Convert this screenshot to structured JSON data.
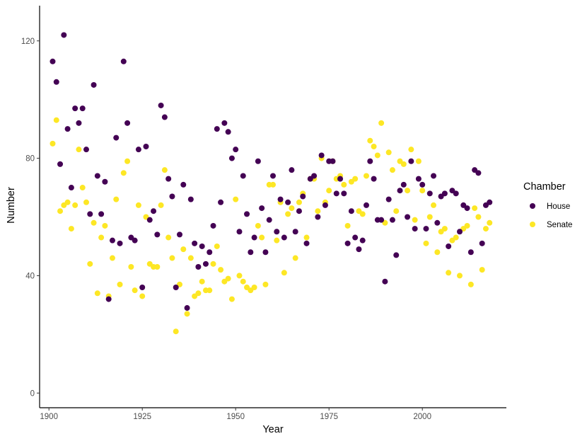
{
  "chart_data": {
    "type": "scatter",
    "title": "",
    "xlabel": "Year",
    "ylabel": "Number",
    "xlim": [
      1897.5,
      2022.5
    ],
    "ylim": [
      -5,
      132
    ],
    "xticks": [
      1900,
      1925,
      1950,
      1975,
      2000
    ],
    "yticks": [
      0,
      40,
      80,
      120
    ],
    "grid": false,
    "legend": {
      "title": "Chamber",
      "placement": "right"
    },
    "series": [
      {
        "name": "House",
        "color": "#440154",
        "x": [
          1901,
          1902,
          1903,
          1904,
          1905,
          1906,
          1907,
          1908,
          1909,
          1910,
          1911,
          1912,
          1913,
          1914,
          1915,
          1916,
          1917,
          1918,
          1919,
          1920,
          1921,
          1922,
          1923,
          1924,
          1925,
          1926,
          1927,
          1928,
          1929,
          1930,
          1931,
          1932,
          1933,
          1934,
          1935,
          1936,
          1937,
          1938,
          1939,
          1940,
          1941,
          1942,
          1943,
          1944,
          1945,
          1946,
          1947,
          1948,
          1949,
          1950,
          1951,
          1952,
          1953,
          1954,
          1955,
          1956,
          1957,
          1958,
          1959,
          1960,
          1961,
          1962,
          1963,
          1964,
          1965,
          1966,
          1967,
          1968,
          1969,
          1970,
          1971,
          1972,
          1973,
          1974,
          1975,
          1976,
          1977,
          1978,
          1979,
          1980,
          1981,
          1982,
          1983,
          1984,
          1985,
          1986,
          1987,
          1988,
          1989,
          1990,
          1991,
          1992,
          1993,
          1994,
          1995,
          1996,
          1997,
          1998,
          1999,
          2000,
          2001,
          2002,
          2003,
          2004,
          2005,
          2006,
          2007,
          2008,
          2009,
          2010,
          2011,
          2012,
          2013,
          2014,
          2015,
          2016,
          2017,
          2018
        ],
        "y": [
          113,
          106,
          78,
          122,
          90,
          70,
          97,
          92,
          97,
          83,
          61,
          105,
          74,
          61,
          72,
          32,
          52,
          87,
          51,
          113,
          92,
          53,
          52,
          83,
          36,
          84,
          59,
          62,
          54,
          98,
          94,
          73,
          67,
          36,
          54,
          71,
          29,
          66,
          51,
          43,
          50,
          44,
          48,
          57,
          90,
          65,
          92,
          89,
          80,
          83,
          55,
          74,
          61,
          48,
          53,
          79,
          63,
          48,
          59,
          74,
          55,
          66,
          53,
          65,
          76,
          55,
          62,
          67,
          51,
          73,
          74,
          60,
          81,
          64,
          79,
          79,
          68,
          73,
          68,
          51,
          62,
          53,
          49,
          52,
          64,
          79,
          73,
          59,
          59,
          38,
          66,
          59,
          47,
          69,
          71,
          60,
          79,
          56,
          73,
          71,
          56,
          68,
          74,
          58,
          67,
          68,
          50,
          69,
          68,
          55,
          64,
          63,
          48,
          76,
          75,
          51,
          64,
          65
        ]
      },
      {
        "name": "Senate",
        "color": "#FDE725",
        "x": [
          1901,
          1902,
          1903,
          1904,
          1905,
          1906,
          1907,
          1908,
          1909,
          1910,
          1911,
          1912,
          1913,
          1914,
          1915,
          1916,
          1917,
          1918,
          1919,
          1920,
          1921,
          1922,
          1923,
          1924,
          1925,
          1926,
          1927,
          1928,
          1929,
          1930,
          1931,
          1932,
          1933,
          1934,
          1935,
          1936,
          1937,
          1938,
          1939,
          1940,
          1941,
          1942,
          1943,
          1944,
          1945,
          1946,
          1947,
          1948,
          1949,
          1950,
          1951,
          1952,
          1953,
          1954,
          1955,
          1956,
          1957,
          1958,
          1959,
          1960,
          1961,
          1962,
          1963,
          1964,
          1965,
          1966,
          1967,
          1968,
          1969,
          1970,
          1971,
          1972,
          1973,
          1974,
          1975,
          1976,
          1977,
          1978,
          1979,
          1980,
          1981,
          1982,
          1983,
          1984,
          1985,
          1986,
          1987,
          1988,
          1989,
          1990,
          1991,
          1992,
          1993,
          1994,
          1995,
          1996,
          1997,
          1998,
          1999,
          2000,
          2001,
          2002,
          2003,
          2004,
          2005,
          2006,
          2007,
          2008,
          2009,
          2010,
          2011,
          2012,
          2013,
          2014,
          2015,
          2016,
          2017,
          2018
        ],
        "y": [
          85,
          93,
          62,
          64,
          65,
          56,
          64,
          83,
          70,
          65,
          44,
          58,
          34,
          53,
          57,
          33,
          46,
          66,
          37,
          75,
          79,
          43,
          35,
          64,
          33,
          60,
          44,
          43,
          43,
          64,
          76,
          53,
          46,
          21,
          37,
          49,
          27,
          46,
          33,
          34,
          38,
          35,
          35,
          44,
          50,
          42,
          38,
          39,
          32,
          66,
          40,
          38,
          36,
          35,
          36,
          57,
          53,
          37,
          71,
          71,
          52,
          65,
          41,
          61,
          63,
          46,
          65,
          68,
          53,
          73,
          73,
          62,
          80,
          65,
          69,
          79,
          73,
          74,
          71,
          57,
          72,
          73,
          62,
          61,
          74,
          86,
          84,
          81,
          92,
          58,
          82,
          76,
          62,
          79,
          78,
          69,
          83,
          59,
          79,
          69,
          51,
          60,
          64,
          48,
          55,
          56,
          41,
          52,
          53,
          40,
          56,
          57,
          37,
          63,
          60,
          42,
          56,
          58
        ]
      }
    ]
  }
}
